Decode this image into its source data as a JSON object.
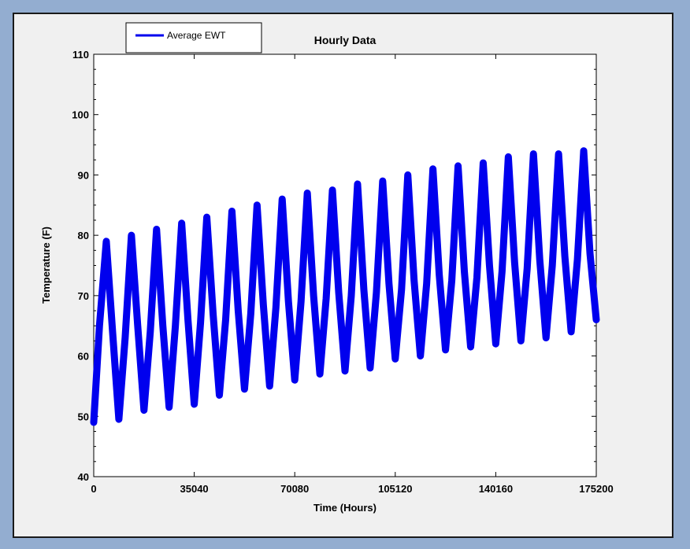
{
  "chart_data": {
    "type": "line",
    "title": "Hourly Data",
    "xlabel": "Time (Hours)",
    "ylabel": "Temperature (F)",
    "xlim": [
      0,
      175200
    ],
    "ylim": [
      40,
      110
    ],
    "x_ticks": [
      0,
      35040,
      70080,
      105120,
      140160,
      175200
    ],
    "y_ticks": [
      40,
      50,
      60,
      70,
      80,
      90,
      100,
      110
    ],
    "grid": false,
    "legend_position": "top-left",
    "series": [
      {
        "name": "Average EWT",
        "color": "#0000ee",
        "x": [
          0,
          2000,
          4380,
          6570,
          8760,
          10950,
          13140,
          15330,
          17520,
          19710,
          21900,
          24090,
          26280,
          28470,
          30660,
          32850,
          35040,
          37230,
          39420,
          41610,
          43800,
          45990,
          48180,
          50370,
          52560,
          54750,
          56940,
          59130,
          61320,
          63510,
          65700,
          67890,
          70080,
          72270,
          74460,
          76650,
          78840,
          81030,
          83220,
          85410,
          87600,
          89790,
          91980,
          94170,
          96360,
          98550,
          100740,
          102930,
          105120,
          107310,
          109500,
          111690,
          113880,
          116070,
          118260,
          120450,
          122640,
          124830,
          127020,
          129210,
          131400,
          133590,
          135780,
          137970,
          140160,
          142350,
          144540,
          146730,
          148920,
          151110,
          153300,
          155490,
          157680,
          159870,
          162060,
          164250,
          166440,
          168630,
          170820,
          173010,
          175200
        ],
        "y": [
          49,
          65,
          79,
          64,
          49.5,
          63,
          80,
          65,
          51,
          64,
          81,
          65,
          51.5,
          65,
          82,
          66,
          52,
          65.5,
          83,
          67,
          53.5,
          66,
          84,
          67.5,
          54.5,
          67,
          85,
          68.5,
          55,
          68,
          86,
          69,
          56,
          69,
          87,
          70,
          57,
          69.5,
          87.5,
          70.5,
          57.5,
          70,
          88.5,
          71,
          58,
          70.5,
          89,
          72,
          59.5,
          71,
          90,
          72.5,
          60,
          72,
          91,
          73.5,
          61,
          72.5,
          91.5,
          74,
          61.5,
          73,
          92,
          75,
          62,
          74,
          93,
          75.5,
          62.5,
          74.5,
          93.5,
          76,
          63,
          75,
          93.5,
          76.5,
          64,
          76,
          94,
          77,
          66
        ]
      }
    ]
  }
}
